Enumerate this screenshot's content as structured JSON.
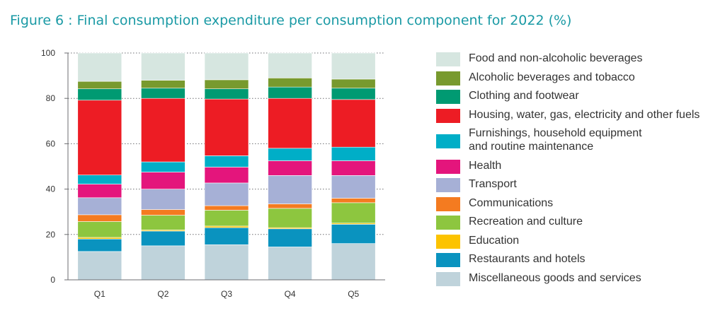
{
  "chart_data": {
    "type": "bar",
    "stacked": true,
    "title": "Figure 6 : Final consumption expenditure per consumption component for 2022 (%)",
    "xlabel": "",
    "ylabel": "",
    "ylim": [
      0,
      100
    ],
    "yticks": [
      0,
      20,
      40,
      60,
      80,
      100
    ],
    "grid": true,
    "legend_position": "right",
    "categories": [
      "Q1",
      "Q2",
      "Q3",
      "Q4",
      "Q5"
    ],
    "series": [
      {
        "name": "Miscellaneous goods and services",
        "color": "#bfd3db",
        "values": [
          12.5,
          15.0,
          15.5,
          14.5,
          16.0
        ]
      },
      {
        "name": "Restaurants and hotels",
        "color": "#0a93bf",
        "values": [
          5.5,
          6.5,
          7.5,
          8.0,
          8.5
        ]
      },
      {
        "name": "Education",
        "color": "#fcc300",
        "values": [
          0.7,
          0.5,
          0.7,
          0.5,
          0.5
        ]
      },
      {
        "name": "Recreation and culture",
        "color": "#8dc63f",
        "values": [
          7.0,
          6.5,
          7.0,
          8.5,
          9.0
        ]
      },
      {
        "name": "Communications",
        "color": "#f47b20",
        "values": [
          3.0,
          2.5,
          2.0,
          2.0,
          2.0
        ]
      },
      {
        "name": "Transport",
        "color": "#a6b0d6",
        "values": [
          7.5,
          9.0,
          10.0,
          12.5,
          10.0
        ]
      },
      {
        "name": "Health",
        "color": "#e4157c",
        "values": [
          6.0,
          7.5,
          7.0,
          6.5,
          6.5
        ]
      },
      {
        "name": "Furnishings, household equipment\nand routine maintenance",
        "color": "#00aec7",
        "values": [
          4.0,
          4.5,
          5.0,
          5.5,
          6.0
        ]
      },
      {
        "name": "Housing, water, gas, electricity and other fuels",
        "color": "#ed1c24",
        "values": [
          33.0,
          28.0,
          25.0,
          22.0,
          21.0
        ]
      },
      {
        "name": "Clothing and footwear",
        "color": "#009a72",
        "values": [
          5.0,
          4.5,
          4.5,
          5.0,
          5.0
        ]
      },
      {
        "name": "Alcoholic beverages and tobacco",
        "color": "#789a2e",
        "values": [
          3.3,
          3.5,
          4.0,
          4.0,
          4.0
        ]
      },
      {
        "name": "Food and non-alcoholic beverages",
        "color": "#d6e6e0",
        "values": [
          12.5,
          12.0,
          11.8,
          11.0,
          11.5
        ]
      }
    ]
  },
  "legend_labels": [
    "Food and non-alcoholic beverages",
    "Alcoholic beverages and tobacco",
    "Clothing and footwear",
    "Housing, water, gas, electricity and other fuels",
    "Furnishings, household equipment\nand routine maintenance",
    "Health",
    "Transport",
    "Communications",
    "Recreation and culture",
    "Education",
    "Restaurants and hotels",
    "Miscellaneous goods and services"
  ]
}
